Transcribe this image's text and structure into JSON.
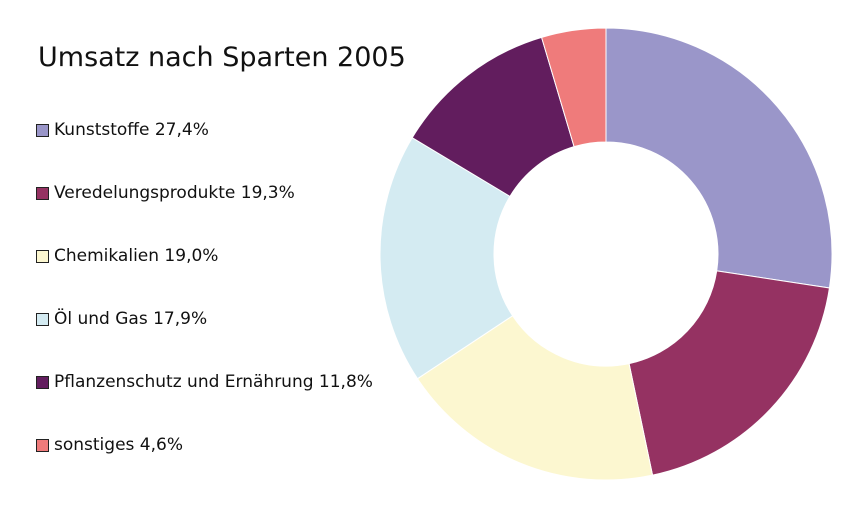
{
  "chart_data": {
    "type": "pie",
    "title": "Umsatz nach Sparten 2005",
    "donut": true,
    "legend_position": "left",
    "slices": [
      {
        "label": "Kunststoffe",
        "value": 27.4,
        "value_label": "27,4%",
        "color": "#9a96c9"
      },
      {
        "label": "Veredelungsprodukte",
        "value": 19.3,
        "value_label": "19,3%",
        "color": "#953262"
      },
      {
        "label": "Chemikalien",
        "value": 19.0,
        "value_label": "19,0%",
        "color": "#fcf7d0"
      },
      {
        "label": "Öl und Gas",
        "value": 17.9,
        "value_label": "17,9%",
        "color": "#d4ebf2"
      },
      {
        "label": "Pflanzenschutz und Ernährung",
        "value": 11.8,
        "value_label": "11,8%",
        "color": "#621d5e"
      },
      {
        "label": "sonstiges",
        "value": 4.6,
        "value_label": "4,6%",
        "color": "#ef7b7b"
      }
    ]
  }
}
